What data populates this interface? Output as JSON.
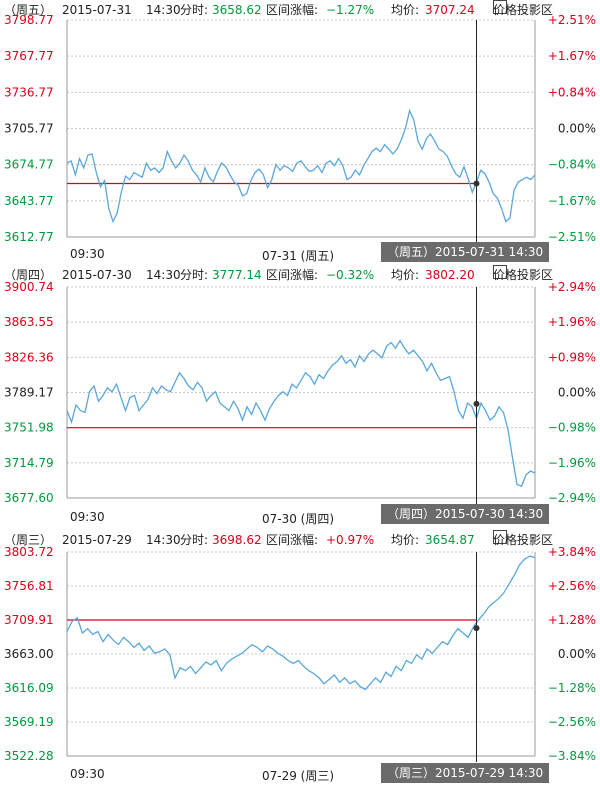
{
  "colors": {
    "up": "#d9001b",
    "down": "#009a3e",
    "line": "#5aa7db",
    "ref": "#d9001b",
    "grid": "#c8c8c8",
    "axis": "#9a9a9a",
    "tip_bg": "#6b6b6b"
  },
  "checkbox_label": "价格投影区",
  "panels": [
    {
      "header": {
        "weekday": "（周五）",
        "date": "2015-07-31",
        "time": "14:30",
        "fenshi_label": "分时:",
        "fenshi_value": "3658.62",
        "range_label": "区间涨幅:",
        "range_value": "−1.27%",
        "avg_label": "均价:",
        "avg_value": "3707.24"
      },
      "x_start": "09:30",
      "x_mid": "07-31  (周五)",
      "tooltip": "（周五）2015-07-31 14:30",
      "chart_data": {
        "type": "line",
        "ref_price": 3658.62,
        "ylim": [
          3612.77,
          3798.77
        ],
        "y_ticks": [
          "3798.77",
          "3767.77",
          "3736.77",
          "3705.77",
          "3674.77",
          "3643.77",
          "3612.77"
        ],
        "pct_ticks": [
          "+2.51%",
          "+1.67%",
          "+0.84%",
          "0.00%",
          "−0.84%",
          "−1.67%",
          "−2.51%"
        ],
        "values": [
          3676,
          3678,
          3666,
          3680,
          3672,
          3683,
          3684,
          3668,
          3656,
          3661,
          3637,
          3626,
          3633,
          3651,
          3665,
          3662,
          3668,
          3666,
          3664,
          3676,
          3670,
          3672,
          3668,
          3672,
          3686,
          3678,
          3672,
          3676,
          3683,
          3678,
          3670,
          3666,
          3660,
          3672,
          3664,
          3660,
          3669,
          3676,
          3673,
          3666,
          3660,
          3657,
          3648,
          3650,
          3661,
          3668,
          3671,
          3666,
          3655,
          3662,
          3675,
          3670,
          3674,
          3672,
          3669,
          3676,
          3678,
          3673,
          3669,
          3670,
          3674,
          3668,
          3676,
          3678,
          3674,
          3680,
          3674,
          3662,
          3664,
          3670,
          3666,
          3674,
          3680,
          3686,
          3689,
          3686,
          3692,
          3688,
          3684,
          3688,
          3696,
          3706,
          3721,
          3713,
          3695,
          3688,
          3697,
          3701,
          3695,
          3688,
          3686,
          3682,
          3674,
          3667,
          3664,
          3673,
          3663,
          3651,
          3660,
          3670,
          3667,
          3660,
          3650,
          3646,
          3637,
          3626,
          3629,
          3653,
          3660,
          3662,
          3664,
          3662,
          3666
        ],
        "cursor_value": 3658.62,
        "cursor_x_fraction": 0.875
      }
    },
    {
      "header": {
        "weekday": "（周四）",
        "date": "2015-07-30",
        "time": "14:30",
        "fenshi_label": "分时:",
        "fenshi_value": "3777.14",
        "range_label": "区间涨幅:",
        "range_value": "−0.32%",
        "avg_label": "均价:",
        "avg_value": "3802.20"
      },
      "x_start": "09:30",
      "x_mid": "07-30  (周四)",
      "tooltip": "（周四）2015-07-30 14:30",
      "chart_data": {
        "type": "line",
        "ref_price": 3751.98,
        "ylim": [
          3677.6,
          3900.74
        ],
        "y_ticks": [
          "3900.74",
          "3863.55",
          "3826.36",
          "3789.17",
          "3751.98",
          "3714.79",
          "3677.60"
        ],
        "pct_ticks": [
          "+2.94%",
          "+1.96%",
          "+0.98%",
          "0.00%",
          "−0.98%",
          "−1.96%",
          "−2.94%"
        ],
        "values": [
          3770,
          3758,
          3776,
          3770,
          3768,
          3790,
          3796,
          3780,
          3786,
          3794,
          3790,
          3798,
          3784,
          3770,
          3784,
          3786,
          3770,
          3776,
          3782,
          3794,
          3788,
          3796,
          3792,
          3790,
          3800,
          3810,
          3804,
          3796,
          3792,
          3800,
          3794,
          3780,
          3786,
          3790,
          3778,
          3774,
          3770,
          3780,
          3772,
          3760,
          3774,
          3766,
          3778,
          3770,
          3760,
          3772,
          3780,
          3786,
          3790,
          3786,
          3798,
          3794,
          3802,
          3810,
          3806,
          3798,
          3808,
          3804,
          3812,
          3818,
          3822,
          3828,
          3820,
          3824,
          3816,
          3828,
          3822,
          3830,
          3834,
          3830,
          3826,
          3838,
          3842,
          3836,
          3844,
          3836,
          3830,
          3834,
          3828,
          3822,
          3812,
          3820,
          3810,
          3802,
          3804,
          3806,
          3790,
          3770,
          3762,
          3778,
          3774,
          3762,
          3778,
          3770,
          3760,
          3764,
          3774,
          3768,
          3750,
          3720,
          3692,
          3690,
          3702,
          3706,
          3704
        ],
        "cursor_value": 3777.14,
        "cursor_x_fraction": 0.875
      }
    },
    {
      "header": {
        "weekday": "（周三）",
        "date": "2015-07-29",
        "time": "14:30",
        "fenshi_label": "分时:",
        "fenshi_value": "3698.62",
        "range_label": "区间涨幅:",
        "range_value": "+0.97%",
        "avg_label": "均价:",
        "avg_value": "3654.87"
      },
      "x_start": "09:30",
      "x_mid": "07-29  (周三)",
      "tooltip": "（周三）2015-07-29 14:30",
      "chart_data": {
        "type": "line",
        "ref_price": 3709.91,
        "ylim": [
          3522.28,
          3803.72
        ],
        "y_ticks": [
          "3803.72",
          "3756.81",
          "3709.91",
          "3663.00",
          "3616.09",
          "3569.19",
          "3522.28"
        ],
        "pct_ticks": [
          "+3.84%",
          "+2.56%",
          "+1.28%",
          "0.00%",
          "−1.28%",
          "−2.56%",
          "−3.84%"
        ],
        "values": [
          3694,
          3708,
          3713,
          3692,
          3698,
          3690,
          3694,
          3680,
          3690,
          3682,
          3676,
          3686,
          3680,
          3672,
          3678,
          3668,
          3674,
          3664,
          3666,
          3670,
          3662,
          3630,
          3644,
          3640,
          3646,
          3636,
          3644,
          3652,
          3648,
          3654,
          3640,
          3650,
          3656,
          3660,
          3664,
          3670,
          3676,
          3672,
          3666,
          3674,
          3670,
          3664,
          3660,
          3654,
          3650,
          3654,
          3646,
          3640,
          3636,
          3630,
          3622,
          3628,
          3634,
          3624,
          3630,
          3622,
          3626,
          3618,
          3614,
          3622,
          3630,
          3624,
          3638,
          3632,
          3646,
          3640,
          3654,
          3650,
          3662,
          3656,
          3670,
          3664,
          3672,
          3680,
          3676,
          3688,
          3698,
          3692,
          3686,
          3700,
          3710,
          3718,
          3728,
          3734,
          3740,
          3748,
          3760,
          3772,
          3786,
          3794,
          3798,
          3796
        ],
        "cursor_value": 3698.62,
        "cursor_x_fraction": 0.875
      }
    }
  ]
}
